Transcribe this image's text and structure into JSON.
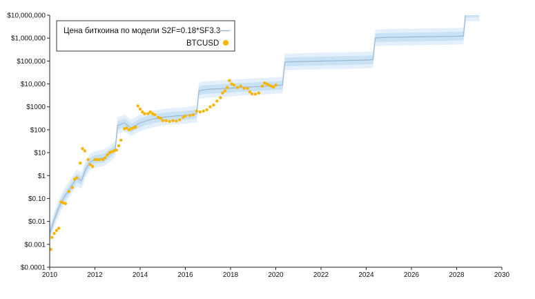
{
  "chart_data": {
    "type": "line",
    "title": "",
    "xlabel": "",
    "ylabel": "",
    "y_scale": "log",
    "xlim": [
      2010,
      2030
    ],
    "ylim": [
      0.0001,
      10000000
    ],
    "grid": false,
    "legend_placement": "top-left",
    "x_ticks": [
      "2010",
      "2012",
      "2014",
      "2016",
      "2018",
      "2020",
      "2022",
      "2024",
      "2026",
      "2028",
      "2030"
    ],
    "y_ticks": [
      {
        "value": 0.0001,
        "label": "$0.0001"
      },
      {
        "value": 0.001,
        "label": "$0.001"
      },
      {
        "value": 0.01,
        "label": "$0.01"
      },
      {
        "value": 0.1,
        "label": "$0.10"
      },
      {
        "value": 1,
        "label": "$1"
      },
      {
        "value": 10,
        "label": "$10"
      },
      {
        "value": 100,
        "label": "$100"
      },
      {
        "value": 1000,
        "label": "$1000"
      },
      {
        "value": 10000,
        "label": "$10,000"
      },
      {
        "value": 100000,
        "label": "$100,000"
      },
      {
        "value": 1000000,
        "label": "$1,000,000"
      },
      {
        "value": 10000000,
        "label": "$10,000,000"
      }
    ],
    "colors": {
      "model_line": "#9fb7cc",
      "band_outer": "#e3f0fb",
      "band_inner": "#c9e1f4",
      "btc_dots": "#f7b500",
      "axis": "#222222"
    },
    "series": [
      {
        "name": "Цена биткоина по модели S2F=0.18*SF3.3",
        "kind": "line_with_band",
        "x": [
          2010.0,
          2010.2,
          2010.4,
          2010.6,
          2010.8,
          2011.0,
          2011.2,
          2011.4,
          2011.6,
          2011.8,
          2012.0,
          2012.2,
          2012.4,
          2012.6,
          2012.8,
          2012.9,
          2013.0,
          2013.3,
          2013.6,
          2014.0,
          2014.3,
          2014.6,
          2015.0,
          2015.3,
          2015.6,
          2016.0,
          2016.3,
          2016.5,
          2016.6,
          2016.8,
          2017.0,
          2017.3,
          2017.6,
          2018.0,
          2018.3,
          2018.6,
          2019.0,
          2019.3,
          2019.6,
          2020.0,
          2020.3,
          2020.4,
          2020.6,
          2021.0,
          2022.0,
          2023.0,
          2024.0,
          2024.3,
          2024.4,
          2024.6,
          2025.0,
          2026.0,
          2027.0,
          2028.0,
          2028.3,
          2028.4,
          2028.6,
          2029.0
        ],
        "values": [
          0.003,
          0.012,
          0.04,
          0.1,
          0.2,
          0.4,
          0.8,
          0.6,
          2.0,
          4.0,
          5.0,
          5.5,
          6.0,
          8.0,
          12.0,
          15.0,
          150.0,
          200.0,
          120.0,
          200.0,
          250.0,
          300.0,
          350.0,
          380.0,
          400.0,
          420.0,
          460.0,
          500.0,
          5000.0,
          5500.0,
          5800.0,
          6000.0,
          6200.0,
          6500.0,
          7000.0,
          7200.0,
          7500.0,
          7800.0,
          8000.0,
          8500.0,
          9000.0,
          90000.0,
          92000.0,
          95000.0,
          100000.0,
          105000.0,
          110000.0,
          115000.0,
          1000000.0,
          1050000.0,
          1080000.0,
          1120000.0,
          1160000.0,
          1200000.0,
          1250000.0,
          12000000.0,
          12500000.0,
          13000000.0
        ]
      },
      {
        "name": "BTCUSD",
        "kind": "scatter",
        "points": [
          [
            2010.05,
            0.0006
          ],
          [
            2010.1,
            0.002
          ],
          [
            2010.2,
            0.003
          ],
          [
            2010.3,
            0.004
          ],
          [
            2010.4,
            0.005
          ],
          [
            2010.5,
            0.07
          ],
          [
            2010.6,
            0.065
          ],
          [
            2010.7,
            0.06
          ],
          [
            2010.85,
            0.2
          ],
          [
            2011.0,
            0.3
          ],
          [
            2011.1,
            0.7
          ],
          [
            2011.2,
            0.8
          ],
          [
            2011.35,
            3.5
          ],
          [
            2011.45,
            15
          ],
          [
            2011.55,
            12
          ],
          [
            2011.7,
            5
          ],
          [
            2011.8,
            3
          ],
          [
            2011.9,
            2.5
          ],
          [
            2012.0,
            5
          ],
          [
            2012.1,
            5
          ],
          [
            2012.2,
            5
          ],
          [
            2012.35,
            5
          ],
          [
            2012.45,
            6
          ],
          [
            2012.55,
            8
          ],
          [
            2012.65,
            10
          ],
          [
            2012.75,
            11
          ],
          [
            2012.85,
            12
          ],
          [
            2012.95,
            13
          ],
          [
            2013.05,
            20
          ],
          [
            2013.15,
            35
          ],
          [
            2013.3,
            110
          ],
          [
            2013.4,
            120
          ],
          [
            2013.5,
            100
          ],
          [
            2013.6,
            110
          ],
          [
            2013.7,
            120
          ],
          [
            2013.8,
            130
          ],
          [
            2013.9,
            1100
          ],
          [
            2014.0,
            800
          ],
          [
            2014.1,
            600
          ],
          [
            2014.2,
            500
          ],
          [
            2014.35,
            500
          ],
          [
            2014.45,
            600
          ],
          [
            2014.55,
            500
          ],
          [
            2014.65,
            450
          ],
          [
            2014.8,
            350
          ],
          [
            2014.9,
            320
          ],
          [
            2015.0,
            250
          ],
          [
            2015.15,
            250
          ],
          [
            2015.3,
            230
          ],
          [
            2015.45,
            250
          ],
          [
            2015.6,
            240
          ],
          [
            2015.75,
            270
          ],
          [
            2015.9,
            350
          ],
          [
            2016.0,
            400
          ],
          [
            2016.2,
            420
          ],
          [
            2016.35,
            450
          ],
          [
            2016.5,
            650
          ],
          [
            2016.65,
            600
          ],
          [
            2016.8,
            650
          ],
          [
            2016.95,
            750
          ],
          [
            2017.1,
            1000
          ],
          [
            2017.25,
            1200
          ],
          [
            2017.4,
            1800
          ],
          [
            2017.55,
            2500
          ],
          [
            2017.65,
            4000
          ],
          [
            2017.75,
            5000
          ],
          [
            2017.85,
            7000
          ],
          [
            2017.95,
            14000
          ],
          [
            2018.05,
            10000
          ],
          [
            2018.15,
            9000
          ],
          [
            2018.3,
            7000
          ],
          [
            2018.45,
            8000
          ],
          [
            2018.6,
            6500
          ],
          [
            2018.75,
            6400
          ],
          [
            2018.85,
            4500
          ],
          [
            2018.95,
            3700
          ],
          [
            2019.1,
            3600
          ],
          [
            2019.25,
            4000
          ],
          [
            2019.4,
            8000
          ],
          [
            2019.5,
            11000
          ],
          [
            2019.6,
            10000
          ],
          [
            2019.7,
            9000
          ],
          [
            2019.8,
            8000
          ],
          [
            2019.9,
            7200
          ],
          [
            2020.0,
            9000
          ]
        ]
      }
    ]
  },
  "legend": {
    "model_label": "Цена биткоина по модели S2F=0.18*SF3.3",
    "btc_label": "BTCUSD"
  }
}
